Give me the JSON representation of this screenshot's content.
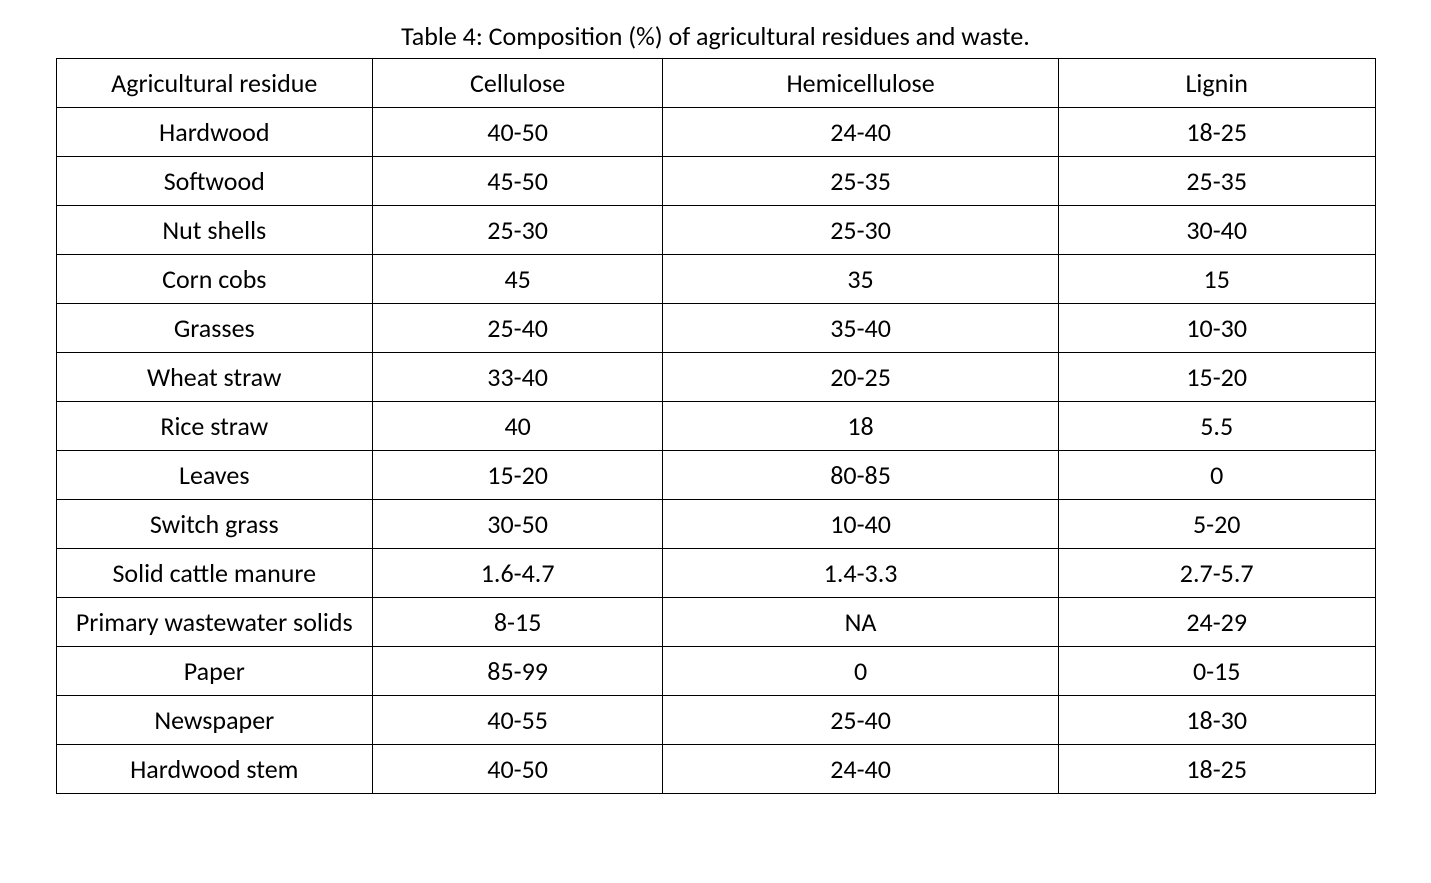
{
  "caption": "Table 4: Composition (%) of agricultural residues and waste.",
  "table": {
    "type": "table",
    "background_color": "#ffffff",
    "border_color": "#000000",
    "text_color": "#000000",
    "font_family": "Calibri",
    "header_fontsize": 26,
    "cell_fontsize": 26,
    "columns": [
      {
        "label": "Agricultural residue",
        "width_pct": 24,
        "align": "center"
      },
      {
        "label": "Cellulose",
        "width_pct": 22,
        "align": "center"
      },
      {
        "label": "Hemicellulose",
        "width_pct": 30,
        "align": "center"
      },
      {
        "label": "Lignin",
        "width_pct": 24,
        "align": "center"
      }
    ],
    "rows": [
      [
        "Hardwood",
        "40-50",
        "24-40",
        "18-25"
      ],
      [
        "Softwood",
        "45-50",
        "25-35",
        "25-35"
      ],
      [
        "Nut shells",
        "25-30",
        "25-30",
        "30-40"
      ],
      [
        "Corn cobs",
        "45",
        "35",
        "15"
      ],
      [
        "Grasses",
        "25-40",
        "35-40",
        "10-30"
      ],
      [
        "Wheat straw",
        "33-40",
        "20-25",
        "15-20"
      ],
      [
        "Rice straw",
        "40",
        "18",
        "5.5"
      ],
      [
        "Leaves",
        "15-20",
        "80-85",
        "0"
      ],
      [
        "Switch grass",
        "30-50",
        "10-40",
        "5-20"
      ],
      [
        "Solid cattle manure",
        "1.6-4.7",
        "1.4-3.3",
        "2.7-5.7"
      ],
      [
        "Primary wastewater solids",
        "8-15",
        "NA",
        "24-29"
      ],
      [
        "Paper",
        "85-99",
        "0",
        "0-15"
      ],
      [
        "Newspaper",
        "40-55",
        "25-40",
        "18-30"
      ],
      [
        "Hardwood stem",
        "40-50",
        "24-40",
        "18-25"
      ]
    ]
  }
}
